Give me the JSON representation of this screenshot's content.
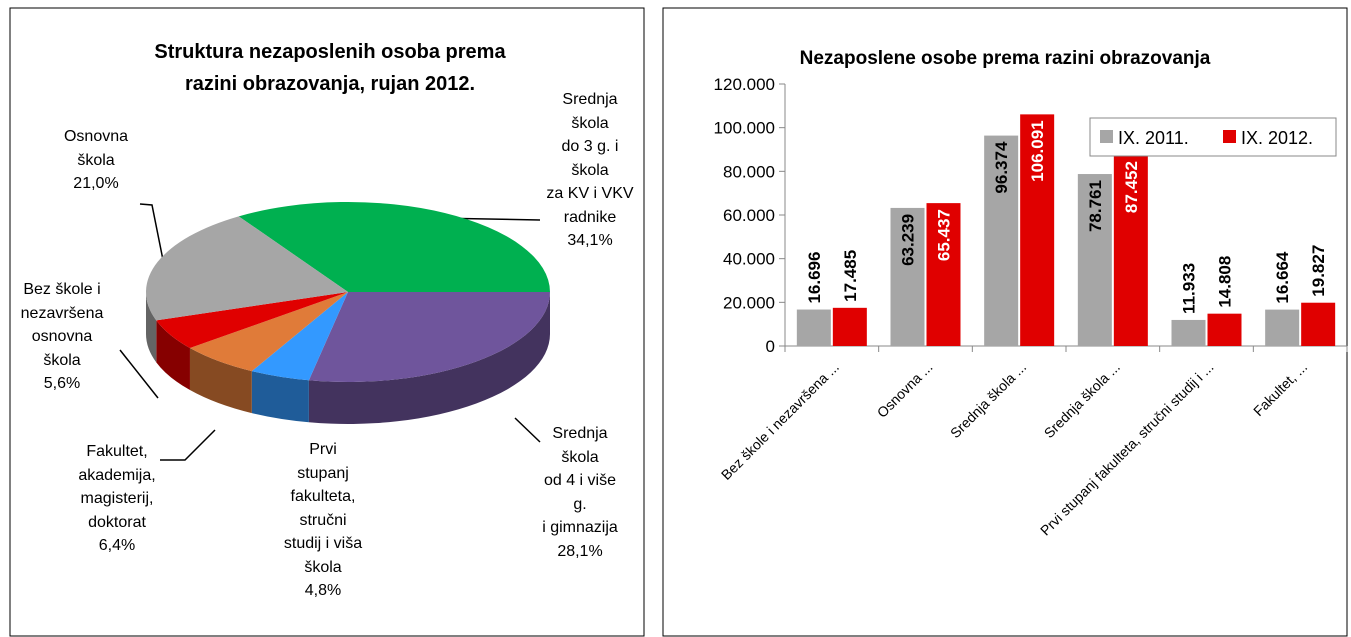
{
  "chart_data": [
    {
      "type": "pie",
      "title": "Struktura nezaposlenih osoba prema\nrazini obrazovanja,  rujan 2012.",
      "categories": [
        "Srednja\nškola\ndo 3 g. i\nškola\nza KV i VKV\nradnike",
        "Srednja\nškola\nod 4 i više\ng.\ni gimnazija",
        "Prvi\nstupanj\nfakulteta,\nstručni\nstudij i viša\nškola",
        "Fakultet,\nakademija,\nmagisterij,\ndoktorat",
        "Bez škole i\nnezavršena\nosnovna\nškola",
        "Osnovna\nškola"
      ],
      "values": [
        34.1,
        28.1,
        4.8,
        6.4,
        5.6,
        21.0
      ],
      "value_labels": [
        "34,1%",
        "28,1%",
        "4,8%",
        "6,4%",
        "5,6%",
        "21,0%"
      ],
      "colors": [
        "#00b050",
        "#6f559c",
        "#3399ff",
        "#e07b39",
        "#e00000",
        "#a6a6a6"
      ]
    },
    {
      "type": "bar",
      "title": "Nezaposlene osobe prema razini obrazovanja",
      "categories": [
        "Bez škole i nezavršena ...",
        "Osnovna ...",
        "Srednja škola ...",
        "Srednja škola ...",
        "Prvi stupanj fakulteta, stručni studij i ...",
        "Fakultet, ..."
      ],
      "series": [
        {
          "name": "IX. 2011.",
          "color": "#a6a6a6",
          "values": [
            16696,
            63239,
            96374,
            78761,
            11933,
            16664
          ],
          "value_labels": [
            "16.696",
            "63.239",
            "96.374",
            "78.761",
            "11.933",
            "16.664"
          ]
        },
        {
          "name": "IX. 2012.",
          "color": "#e00000",
          "values": [
            17485,
            65437,
            106091,
            87452,
            14808,
            19827
          ],
          "value_labels": [
            "17.485",
            "65.437",
            "106.091",
            "87.452",
            "14.808",
            "19.827"
          ]
        }
      ],
      "ylim": [
        0,
        120000
      ],
      "yticks": [
        0,
        {
          "value": 20000,
          "label": "20.000"
        },
        {
          "value": 40000,
          "label": "40.000"
        },
        {
          "value": 60000,
          "label": "60.000"
        },
        {
          "value": 80000,
          "label": "80.000"
        },
        {
          "value": 100000,
          "label": "100.000"
        },
        {
          "value": 120000,
          "label": "120.000"
        }
      ],
      "legend": "top-right"
    }
  ]
}
